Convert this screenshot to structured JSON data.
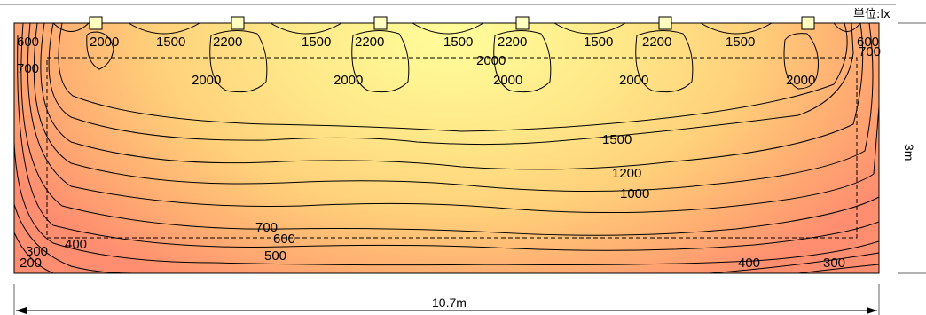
{
  "unit_label": "単位:lx",
  "dimensions": {
    "width": "10.7m",
    "height": "3m"
  },
  "contour_labels": [
    "600",
    "2000",
    "1500",
    "2200",
    "1500",
    "2200",
    "1500",
    "2200",
    "1500",
    "2200",
    "1500",
    "600",
    "700",
    "700",
    "2000",
    "2000",
    "2000",
    "2000",
    "2000",
    "2000",
    "1500",
    "1200",
    "1000",
    "700",
    "600",
    "500",
    "400",
    "300",
    "200",
    "400",
    "300"
  ],
  "luminaire_count": 6,
  "colors": {
    "bright_center": "#fffd9a",
    "mid": "#ffd37a",
    "edge": "#ff9172",
    "contour_line": "#000000"
  }
}
